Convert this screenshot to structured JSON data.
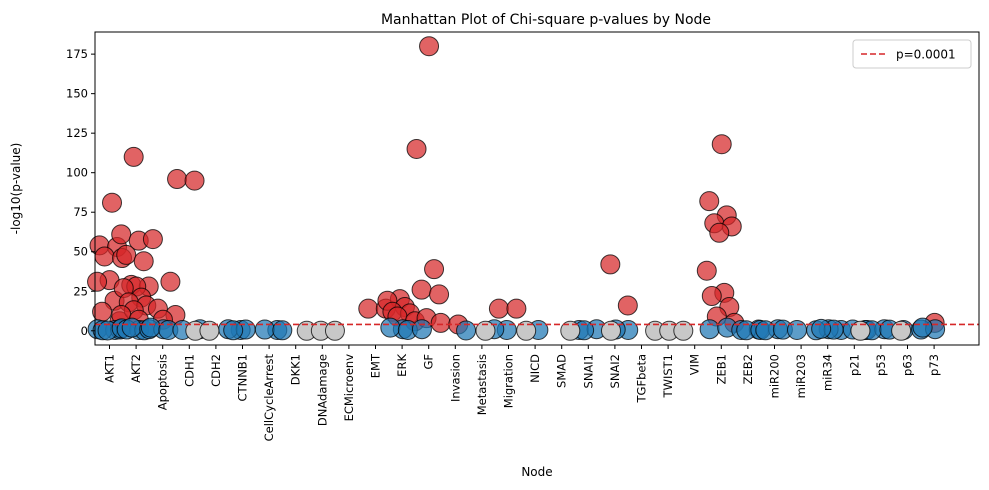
{
  "chart_data": {
    "type": "scatter",
    "title": "Manhattan Plot of Chi-square p-values by Node",
    "xlabel": "Node",
    "ylabel": "-log10(p-value)",
    "ylim": [
      -9,
      189
    ],
    "yticks": [
      0,
      25,
      50,
      75,
      100,
      125,
      150,
      175
    ],
    "grid": false,
    "legend_position": "top-right",
    "categories": [
      "AKT1",
      "AKT2",
      "Apoptosis",
      "CDH1",
      "CDH2",
      "CTNNB1",
      "CellCycleArrest",
      "DKK1",
      "DNAdamage",
      "ECMicroenv",
      "EMT",
      "ERK",
      "GF",
      "Invasion",
      "Metastasis",
      "Migration",
      "NICD",
      "SMAD",
      "SNAI1",
      "SNAI2",
      "TGFbeta",
      "TWIST1",
      "VIM",
      "ZEB1",
      "ZEB2",
      "miR200",
      "miR203",
      "miR34",
      "p21",
      "p53",
      "p63",
      "p73"
    ],
    "threshold": {
      "label": "p=0.0001",
      "value": 4,
      "color": "#d62728"
    },
    "colors": {
      "significant": "#d62728",
      "non_significant": "#1f77b4",
      "no_data": "#c8c8c8"
    },
    "series": [
      {
        "group": "significant",
        "points": [
          {
            "x": "AKT1",
            "y": 81
          },
          {
            "x": "AKT1",
            "y": 54
          },
          {
            "x": "AKT1",
            "y": 53
          },
          {
            "x": "AKT1",
            "y": 47
          },
          {
            "x": "AKT1",
            "y": 46
          },
          {
            "x": "AKT1",
            "y": 32
          },
          {
            "x": "AKT1",
            "y": 31
          },
          {
            "x": "AKT1",
            "y": 19
          },
          {
            "x": "AKT1",
            "y": 12
          },
          {
            "x": "AKT1",
            "y": 6
          },
          {
            "x": "AKT2",
            "y": 110
          },
          {
            "x": "AKT2",
            "y": 61
          },
          {
            "x": "AKT2",
            "y": 57
          },
          {
            "x": "AKT2",
            "y": 48
          },
          {
            "x": "AKT2",
            "y": 44
          },
          {
            "x": "AKT2",
            "y": 29
          },
          {
            "x": "AKT2",
            "y": 28
          },
          {
            "x": "AKT2",
            "y": 28
          },
          {
            "x": "AKT2",
            "y": 27
          },
          {
            "x": "AKT2",
            "y": 21
          },
          {
            "x": "AKT2",
            "y": 18
          },
          {
            "x": "AKT2",
            "y": 16
          },
          {
            "x": "AKT2",
            "y": 13
          },
          {
            "x": "AKT2",
            "y": 10
          },
          {
            "x": "AKT2",
            "y": 7
          },
          {
            "x": "Apoptosis",
            "y": 58
          },
          {
            "x": "Apoptosis",
            "y": 31
          },
          {
            "x": "Apoptosis",
            "y": 14
          },
          {
            "x": "Apoptosis",
            "y": 10
          },
          {
            "x": "Apoptosis",
            "y": 7
          },
          {
            "x": "CDH1",
            "y": 96
          },
          {
            "x": "CDH1",
            "y": 95
          },
          {
            "x": "EMT",
            "y": 14
          },
          {
            "x": "EMT",
            "y": 14
          },
          {
            "x": "ERK",
            "y": 20
          },
          {
            "x": "ERK",
            "y": 19
          },
          {
            "x": "ERK",
            "y": 15
          },
          {
            "x": "ERK",
            "y": 12
          },
          {
            "x": "ERK",
            "y": 11
          },
          {
            "x": "ERK",
            "y": 9
          },
          {
            "x": "ERK",
            "y": 6
          },
          {
            "x": "GF",
            "y": 180
          },
          {
            "x": "GF",
            "y": 115
          },
          {
            "x": "GF",
            "y": 39
          },
          {
            "x": "GF",
            "y": 26
          },
          {
            "x": "GF",
            "y": 23
          },
          {
            "x": "GF",
            "y": 8
          },
          {
            "x": "Invasion",
            "y": 5
          },
          {
            "x": "Invasion",
            "y": 4
          },
          {
            "x": "Migration",
            "y": 14
          },
          {
            "x": "Migration",
            "y": 14
          },
          {
            "x": "SNAI2",
            "y": 42
          },
          {
            "x": "SNAI2",
            "y": 16
          },
          {
            "x": "ZEB1",
            "y": 118
          },
          {
            "x": "ZEB1",
            "y": 82
          },
          {
            "x": "ZEB1",
            "y": 73
          },
          {
            "x": "ZEB1",
            "y": 68
          },
          {
            "x": "ZEB1",
            "y": 66
          },
          {
            "x": "ZEB1",
            "y": 62
          },
          {
            "x": "ZEB1",
            "y": 38
          },
          {
            "x": "ZEB1",
            "y": 24
          },
          {
            "x": "ZEB1",
            "y": 22
          },
          {
            "x": "ZEB1",
            "y": 15
          },
          {
            "x": "ZEB1",
            "y": 9
          },
          {
            "x": "ZEB1",
            "y": 5
          },
          {
            "x": "p73",
            "y": 5
          }
        ]
      },
      {
        "group": "non_significant",
        "points": [
          {
            "x": "AKT1",
            "y": 1
          },
          {
            "x": "AKT1",
            "y": 0.5
          },
          {
            "x": "AKT1",
            "y": 0.3
          },
          {
            "x": "AKT1",
            "y": 0.8
          },
          {
            "x": "AKT1",
            "y": 0.2
          },
          {
            "x": "AKT2",
            "y": 1.5
          },
          {
            "x": "AKT2",
            "y": 0.5
          },
          {
            "x": "AKT2",
            "y": 0.8
          },
          {
            "x": "AKT2",
            "y": 0.3
          },
          {
            "x": "AKT2",
            "y": 2
          },
          {
            "x": "AKT2",
            "y": 1
          },
          {
            "x": "Apoptosis",
            "y": 1
          },
          {
            "x": "Apoptosis",
            "y": 2
          },
          {
            "x": "Apoptosis",
            "y": 0.5
          },
          {
            "x": "CDH1",
            "y": 0.5
          },
          {
            "x": "CDH1",
            "y": 1
          },
          {
            "x": "CTNNB1",
            "y": 0.5
          },
          {
            "x": "CTNNB1",
            "y": 1
          },
          {
            "x": "CTNNB1",
            "y": 0.8
          },
          {
            "x": "CTNNB1",
            "y": 0.3
          },
          {
            "x": "CellCycleArrest",
            "y": 0.5
          },
          {
            "x": "CellCycleArrest",
            "y": 0.8
          },
          {
            "x": "CellCycleArrest",
            "y": 0.3
          },
          {
            "x": "ERK",
            "y": 1
          },
          {
            "x": "ERK",
            "y": 2
          },
          {
            "x": "ERK",
            "y": 0.5
          },
          {
            "x": "GF",
            "y": 1
          },
          {
            "x": "Invasion",
            "y": 0.2
          },
          {
            "x": "Migration",
            "y": 0.5
          },
          {
            "x": "Migration",
            "y": 1
          },
          {
            "x": "NICD",
            "y": 0.5
          },
          {
            "x": "SNAI1",
            "y": 0.5
          },
          {
            "x": "SNAI1",
            "y": 1
          },
          {
            "x": "SNAI1",
            "y": 0.3
          },
          {
            "x": "SNAI2",
            "y": 0.5
          },
          {
            "x": "SNAI2",
            "y": 0.8
          },
          {
            "x": "ZEB1",
            "y": 1
          },
          {
            "x": "ZEB1",
            "y": 2
          },
          {
            "x": "ZEB2",
            "y": 0.5
          },
          {
            "x": "ZEB2",
            "y": 0.8
          },
          {
            "x": "ZEB2",
            "y": 0.3
          },
          {
            "x": "miR200",
            "y": 0.5
          },
          {
            "x": "miR200",
            "y": 1
          },
          {
            "x": "miR200",
            "y": 0.3
          },
          {
            "x": "miR200",
            "y": 0.7
          },
          {
            "x": "miR203",
            "y": 0.5
          },
          {
            "x": "miR34",
            "y": 0.5
          },
          {
            "x": "miR34",
            "y": 1
          },
          {
            "x": "miR34",
            "y": 0.3
          },
          {
            "x": "miR34",
            "y": 0.7
          },
          {
            "x": "miR34",
            "y": 1.2
          },
          {
            "x": "p21",
            "y": 0.5
          },
          {
            "x": "p21",
            "y": 0.8
          },
          {
            "x": "p53",
            "y": 0.5
          },
          {
            "x": "p53",
            "y": 1
          },
          {
            "x": "p53",
            "y": 0.3
          },
          {
            "x": "p53",
            "y": 0.7
          },
          {
            "x": "p63",
            "y": 0.5
          },
          {
            "x": "p63",
            "y": 0.8
          },
          {
            "x": "p73",
            "y": 1
          },
          {
            "x": "p73",
            "y": 2
          }
        ]
      },
      {
        "group": "no_data",
        "points": [
          {
            "x": "CDH1",
            "y": 0
          },
          {
            "x": "CDH2",
            "y": 0
          },
          {
            "x": "DKK1",
            "y": 0
          },
          {
            "x": "DNAdamage",
            "y": 0
          },
          {
            "x": "ECMicroenv",
            "y": 0
          },
          {
            "x": "Metastasis",
            "y": 0
          },
          {
            "x": "NICD",
            "y": 0
          },
          {
            "x": "SMAD",
            "y": 0
          },
          {
            "x": "SNAI2",
            "y": 0
          },
          {
            "x": "TGFbeta",
            "y": 0
          },
          {
            "x": "TWIST1",
            "y": 0
          },
          {
            "x": "VIM",
            "y": 0
          },
          {
            "x": "p21",
            "y": 0
          },
          {
            "x": "p63",
            "y": 0
          }
        ]
      }
    ]
  }
}
